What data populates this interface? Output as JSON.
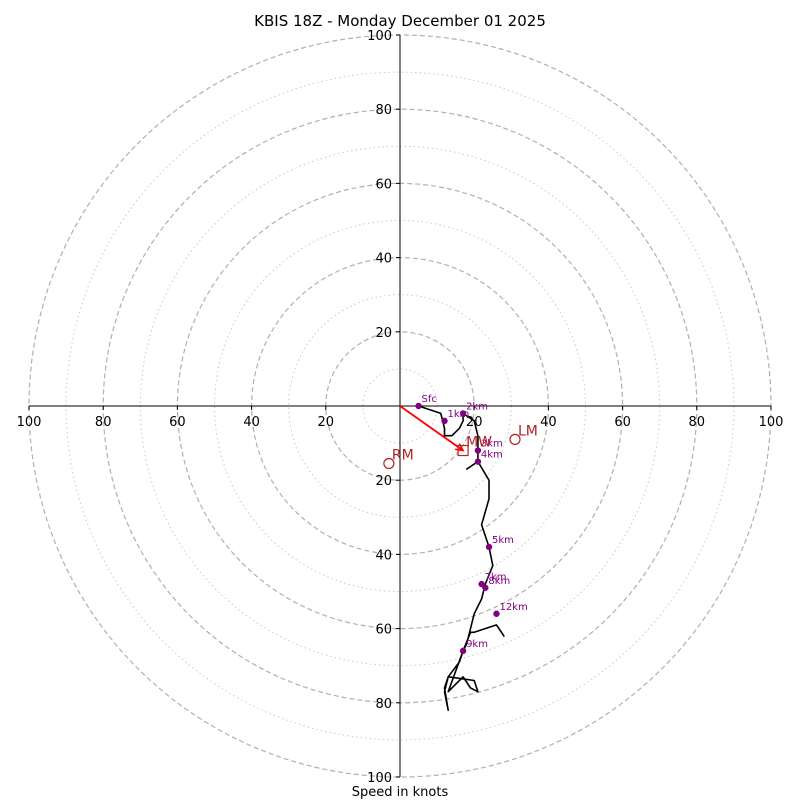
{
  "chart_data": {
    "type": "hodograph",
    "title": "KBIS 18Z - Monday December 01 2025",
    "xlabel": "Speed in knots",
    "range": [
      -100,
      100
    ],
    "ring_major": [
      20,
      40,
      60,
      80,
      100
    ],
    "ring_minor": [
      10,
      30,
      50,
      70,
      90
    ],
    "x_tick_labels": [
      "100",
      "80",
      "60",
      "40",
      "20",
      "20",
      "40",
      "60",
      "80",
      "100"
    ],
    "y_tick_labels": [
      "100",
      "80",
      "60",
      "40",
      "20",
      "20",
      "40",
      "60",
      "80",
      "100"
    ],
    "trace": [
      {
        "u": 5,
        "v": 0
      },
      {
        "u": 11,
        "v": -2
      },
      {
        "u": 12,
        "v": -6
      },
      {
        "u": 12,
        "v": -8
      },
      {
        "u": 14,
        "v": -8
      },
      {
        "u": 16,
        "v": -6
      },
      {
        "u": 17,
        "v": -4
      },
      {
        "u": 17,
        "v": -2
      },
      {
        "u": 20,
        "v": -4
      },
      {
        "u": 21,
        "v": -8
      },
      {
        "u": 21,
        "v": -12
      },
      {
        "u": 21,
        "v": -15
      },
      {
        "u": 18,
        "v": -17
      },
      {
        "u": 21,
        "v": -15
      },
      {
        "u": 24,
        "v": -20
      },
      {
        "u": 24,
        "v": -25
      },
      {
        "u": 22,
        "v": -32
      },
      {
        "u": 24,
        "v": -38
      },
      {
        "u": 25,
        "v": -43
      },
      {
        "u": 23,
        "v": -48
      },
      {
        "u": 22,
        "v": -52
      },
      {
        "u": 20,
        "v": -56
      },
      {
        "u": 19,
        "v": -60
      },
      {
        "u": 18,
        "v": -64
      },
      {
        "u": 17,
        "v": -66
      },
      {
        "u": 16,
        "v": -69
      },
      {
        "u": 13,
        "v": -73
      },
      {
        "u": 12,
        "v": -77
      },
      {
        "u": 13,
        "v": -82
      },
      {
        "u": 12,
        "v": -76
      },
      {
        "u": 13,
        "v": -73
      },
      {
        "u": 20,
        "v": -74
      },
      {
        "u": 21,
        "v": -77
      },
      {
        "u": 19,
        "v": -76
      },
      {
        "u": 17,
        "v": -73
      },
      {
        "u": 13,
        "v": -77
      },
      {
        "u": 17,
        "v": -66
      },
      {
        "u": 19,
        "v": -61
      },
      {
        "u": 20,
        "v": -61
      },
      {
        "u": 26,
        "v": -59
      },
      {
        "u": 28,
        "v": -62
      },
      {
        "u": 26,
        "v": -59
      },
      {
        "u": 20,
        "v": -61
      }
    ],
    "height_markers": [
      {
        "label": "Sfc",
        "u": 5,
        "v": 0
      },
      {
        "label": "1km",
        "u": 12,
        "v": -4
      },
      {
        "label": "2km",
        "u": 17,
        "v": -2
      },
      {
        "label": "3km",
        "u": 21,
        "v": -12
      },
      {
        "label": "4km",
        "u": 21,
        "v": -15
      },
      {
        "label": "5km",
        "u": 24,
        "v": -38
      },
      {
        "label": "7km",
        "u": 22,
        "v": -48
      },
      {
        "label": "8km",
        "u": 23,
        "v": -49
      },
      {
        "label": "12km",
        "u": 26,
        "v": -56
      },
      {
        "label": "9km",
        "u": 17,
        "v": -66
      }
    ],
    "motions": [
      {
        "label": "RM",
        "u": -3,
        "v": -15.5,
        "shape": "circle"
      },
      {
        "label": "LM",
        "u": 31,
        "v": -9,
        "shape": "circle"
      },
      {
        "label": "MW",
        "u": 17,
        "v": -12,
        "shape": "square"
      }
    ],
    "mean_wind_vector": {
      "u": 17,
      "v": -12
    },
    "colors": {
      "trace": "#000000",
      "marker": "#800080",
      "motion": "#b22222",
      "vector": "#ff0000",
      "ring": "#b0b0b0",
      "axis": "#000000"
    }
  }
}
